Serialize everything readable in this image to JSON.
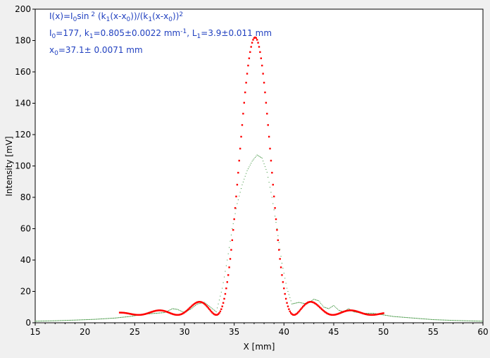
{
  "chart_data": {
    "type": "scatter",
    "xlabel": "X [mm]",
    "ylabel": "Intensity [mV]",
    "xlim": [
      15,
      60
    ],
    "ylim": [
      0,
      200
    ],
    "x_ticks": [
      15,
      20,
      25,
      30,
      35,
      40,
      45,
      50,
      55,
      60
    ],
    "y_ticks": [
      0,
      20,
      40,
      60,
      80,
      100,
      120,
      140,
      160,
      180,
      200
    ],
    "grid": false,
    "annotations": {
      "formula": "I(x)=I0sin 2 (k1(x-x0))/(k1(x-x0))2",
      "params1": "I0=177,  k1=0.805±0.0022 mm-1,  L1=3.9±0.011 mm",
      "params2": "x0=37.1±  0.0071 mm"
    },
    "fit": {
      "I0": 177,
      "k1": 0.805,
      "x0": 37.1,
      "baseline": 5,
      "x_start": 23.5,
      "x_end": 50,
      "color": "#ff0000"
    },
    "measured": {
      "color": "#2e8b2e",
      "x": [
        15,
        17,
        19,
        21,
        23,
        24.5,
        26,
        27,
        28,
        28.8,
        29.3,
        30,
        30.7,
        31.3,
        32,
        32.6,
        33.2,
        33.8,
        34.3,
        34.8,
        35.3,
        35.8,
        36.3,
        36.8,
        37.3,
        37.8,
        38.3,
        38.8,
        39.3,
        39.8,
        40.3,
        40.8,
        41.5,
        42.3,
        43,
        43.5,
        44,
        44.5,
        45,
        45.5,
        46,
        46.5,
        47,
        48,
        49,
        51,
        53,
        55,
        57,
        60
      ],
      "y": [
        1,
        1.3,
        1.7,
        2.2,
        3,
        4,
        5.5,
        6,
        6.5,
        9,
        8.5,
        6.5,
        9,
        12,
        13,
        10,
        7,
        22,
        40,
        60,
        76,
        88,
        97,
        103,
        107,
        105,
        96,
        80,
        60,
        38,
        22,
        12,
        13,
        12,
        15,
        14,
        10,
        9,
        11,
        8,
        7,
        9,
        7,
        6,
        6,
        4,
        3,
        2,
        1.5,
        1
      ]
    }
  }
}
